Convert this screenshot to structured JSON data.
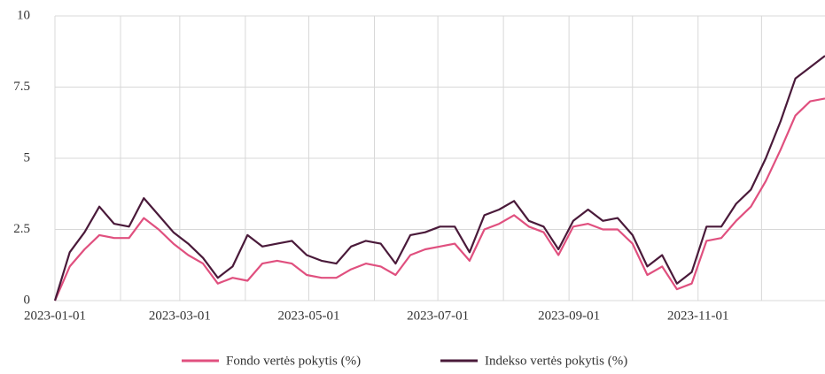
{
  "chart_data": {
    "type": "line",
    "x": [
      "2023-01-01",
      "2023-01-08",
      "2023-01-15",
      "2023-01-22",
      "2023-01-29",
      "2023-02-05",
      "2023-02-12",
      "2023-02-19",
      "2023-02-26",
      "2023-03-05",
      "2023-03-12",
      "2023-03-19",
      "2023-03-26",
      "2023-04-02",
      "2023-04-09",
      "2023-04-16",
      "2023-04-23",
      "2023-04-30",
      "2023-05-07",
      "2023-05-14",
      "2023-05-21",
      "2023-05-28",
      "2023-06-04",
      "2023-06-11",
      "2023-06-18",
      "2023-06-25",
      "2023-07-02",
      "2023-07-09",
      "2023-07-16",
      "2023-07-23",
      "2023-07-30",
      "2023-08-06",
      "2023-08-13",
      "2023-08-20",
      "2023-08-27",
      "2023-09-03",
      "2023-09-10",
      "2023-09-17",
      "2023-09-24",
      "2023-10-01",
      "2023-10-08",
      "2023-10-15",
      "2023-10-22",
      "2023-10-29",
      "2023-11-05",
      "2023-11-12",
      "2023-11-19",
      "2023-11-26",
      "2023-12-03",
      "2023-12-10",
      "2023-12-17",
      "2023-12-24",
      "2023-12-31"
    ],
    "series": [
      {
        "name": "Fondo vertės pokytis (%)",
        "color": "#e0507f",
        "values": [
          0,
          1.2,
          1.8,
          2.3,
          2.2,
          2.2,
          2.9,
          2.5,
          2.0,
          1.6,
          1.3,
          0.6,
          0.8,
          0.7,
          1.3,
          1.4,
          1.3,
          0.9,
          0.8,
          0.8,
          1.1,
          1.3,
          1.2,
          0.9,
          1.6,
          1.8,
          1.9,
          2.0,
          1.4,
          2.5,
          2.7,
          3.0,
          2.6,
          2.4,
          1.6,
          2.6,
          2.7,
          2.5,
          2.5,
          2.0,
          0.9,
          1.2,
          0.4,
          0.6,
          2.1,
          2.2,
          2.8,
          3.3,
          4.2,
          5.3,
          6.5,
          7.0,
          7.1
        ]
      },
      {
        "name": "Indekso vertės pokytis (%)",
        "color": "#4a1a3a",
        "values": [
          0,
          1.7,
          2.4,
          3.3,
          2.7,
          2.6,
          3.6,
          3.0,
          2.4,
          2.0,
          1.5,
          0.8,
          1.2,
          2.3,
          1.9,
          2.0,
          2.1,
          1.6,
          1.4,
          1.3,
          1.9,
          2.1,
          2.0,
          1.3,
          2.3,
          2.4,
          2.6,
          2.6,
          1.7,
          3.0,
          3.2,
          3.5,
          2.8,
          2.6,
          1.8,
          2.8,
          3.2,
          2.8,
          2.9,
          2.3,
          1.2,
          1.6,
          0.6,
          1.0,
          2.6,
          2.6,
          3.4,
          3.9,
          5.0,
          6.3,
          7.8,
          8.2,
          8.6
        ]
      }
    ],
    "xlim": [
      "2023-01-01",
      "2023-12-31"
    ],
    "xticks": [
      "2023-01-01",
      "2023-03-01",
      "2023-05-01",
      "2023-07-01",
      "2023-09-01",
      "2023-11-01"
    ],
    "xgrid": [
      "2023-01-01",
      "2023-02-01",
      "2023-03-01",
      "2023-04-01",
      "2023-05-01",
      "2023-06-01",
      "2023-07-01",
      "2023-08-01",
      "2023-09-01",
      "2023-10-01",
      "2023-11-01",
      "2023-12-01"
    ],
    "ylim": [
      0,
      10
    ],
    "yticks": [
      0,
      2.5,
      5,
      7.5,
      10
    ],
    "grid": true,
    "legend": "bottom"
  }
}
